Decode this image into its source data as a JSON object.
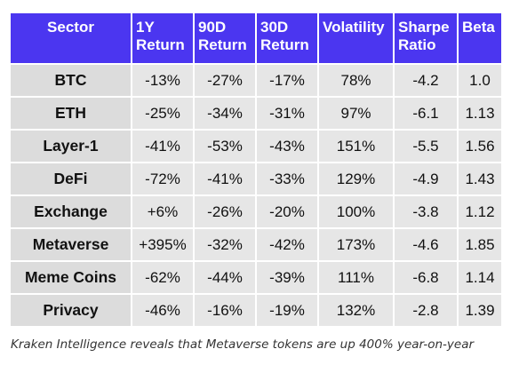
{
  "headers": [
    {
      "line1": "Sector",
      "line2": ""
    },
    {
      "line1": "1Y",
      "line2": "Return"
    },
    {
      "line1": "90D",
      "line2": "Return"
    },
    {
      "line1": "30D",
      "line2": "Return"
    },
    {
      "line1": "Volatility",
      "line2": ""
    },
    {
      "line1": "Sharpe",
      "line2": "Ratio"
    },
    {
      "line1": "Beta",
      "line2": ""
    }
  ],
  "rows": [
    {
      "sector": "BTC",
      "r1y": "-13%",
      "r90d": "-27%",
      "r30d": "-17%",
      "volatility": "78%",
      "sharpe": "-4.2",
      "beta": "1.0"
    },
    {
      "sector": "ETH",
      "r1y": "-25%",
      "r90d": "-34%",
      "r30d": "-31%",
      "volatility": "97%",
      "sharpe": "-6.1",
      "beta": "1.13"
    },
    {
      "sector": "Layer-1",
      "r1y": "-41%",
      "r90d": "-53%",
      "r30d": "-43%",
      "volatility": "151%",
      "sharpe": "-5.5",
      "beta": "1.56"
    },
    {
      "sector": "DeFi",
      "r1y": "-72%",
      "r90d": "-41%",
      "r30d": "-33%",
      "volatility": "129%",
      "sharpe": "-4.9",
      "beta": "1.43"
    },
    {
      "sector": "Exchange",
      "r1y": "+6%",
      "r90d": "-26%",
      "r30d": "-20%",
      "volatility": "100%",
      "sharpe": "-3.8",
      "beta": "1.12"
    },
    {
      "sector": "Metaverse",
      "r1y": "+395%",
      "r90d": "-32%",
      "r30d": "-42%",
      "volatility": "173%",
      "sharpe": "-4.6",
      "beta": "1.85"
    },
    {
      "sector": "Meme Coins",
      "r1y": "-62%",
      "r90d": "-44%",
      "r30d": "-39%",
      "volatility": "111%",
      "sharpe": "-6.8",
      "beta": "1.14"
    },
    {
      "sector": "Privacy",
      "r1y": "-46%",
      "r90d": "-16%",
      "r30d": "-19%",
      "volatility": "132%",
      "sharpe": "-2.8",
      "beta": "1.39"
    }
  ],
  "colors": {
    "header_bg": "#4b36f0",
    "cell_bg": "#e6e6e6",
    "negative": "#e8231f",
    "positive": "#1a9a1a"
  },
  "caption": "Kraken Intelligence reveals that Metaverse tokens are up 400% year-on-year"
}
